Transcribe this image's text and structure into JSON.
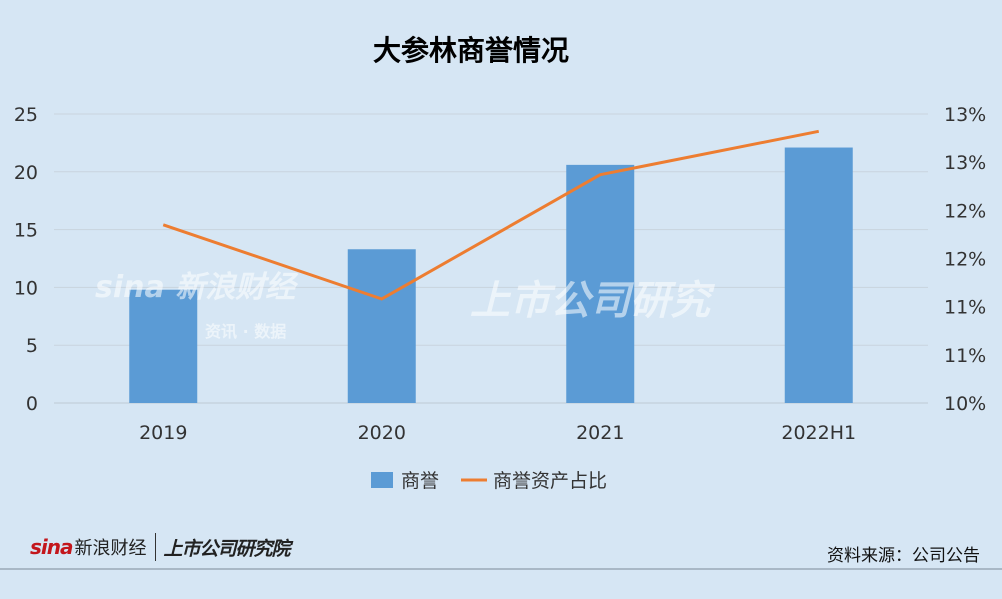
{
  "colors": {
    "background": "#d6e6f4",
    "bar": "#5b9bd5",
    "line": "#ed7d31",
    "grid": "#c9d4de",
    "text": "#333333"
  },
  "chart_data": {
    "type": "bar",
    "title": "大参林商誉情况",
    "categories": [
      "2019",
      "2020",
      "2021",
      "2022H1"
    ],
    "series": [
      {
        "name": "商誉",
        "type": "bar",
        "axis": "left",
        "values": [
          9.8,
          13.3,
          20.6,
          22.1
        ]
      },
      {
        "name": "商誉资产占比",
        "type": "line",
        "axis": "right",
        "values": [
          11.85,
          11.08,
          12.37,
          12.82
        ]
      }
    ],
    "y_left": {
      "ylim": [
        0,
        25
      ],
      "ticks": [
        0,
        5,
        10,
        15,
        20,
        25
      ],
      "tick_labels": [
        "0",
        "5",
        "10",
        "15",
        "20",
        "25"
      ]
    },
    "y_right": {
      "ylim": [
        10.0,
        13.0
      ],
      "ticks": [
        10.0,
        10.5,
        11.0,
        11.5,
        12.0,
        12.5,
        13.0
      ],
      "tick_labels": [
        "10%",
        "11%",
        "11%",
        "12%",
        "12%",
        "13%",
        "13%"
      ]
    },
    "grid": true,
    "legend_position": "bottom"
  },
  "watermark": {
    "sina_logo": "sina",
    "sina_name": "新浪财经",
    "sina_sub": "资讯 · 数据",
    "research": "上市公司研究"
  },
  "footer": {
    "sina_logo": "sina",
    "sina_name": "新浪财经",
    "research_name": "上市公司研究院",
    "source": "资料来源：公司公告"
  }
}
